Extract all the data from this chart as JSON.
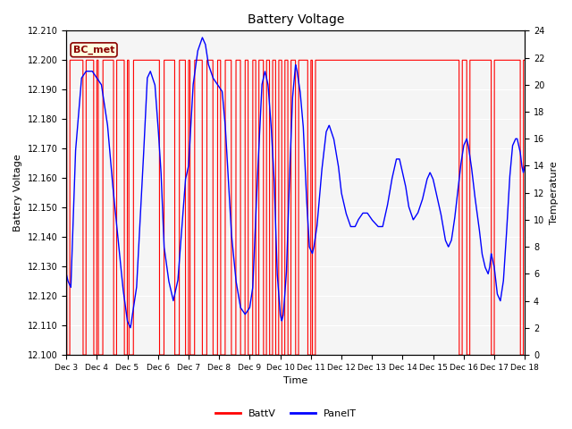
{
  "title": "Battery Voltage",
  "xlabel": "Time",
  "ylabel_left": "Battery Voltage",
  "ylabel_right": "Temperature",
  "ylim_left": [
    12.1,
    12.21
  ],
  "ylim_right": [
    0,
    24
  ],
  "yticks_left": [
    12.1,
    12.11,
    12.12,
    12.13,
    12.14,
    12.15,
    12.16,
    12.17,
    12.18,
    12.19,
    12.2,
    12.21
  ],
  "yticks_right": [
    0,
    2,
    4,
    6,
    8,
    10,
    12,
    14,
    16,
    18,
    20,
    22,
    24
  ],
  "bg_color": "#ffffff",
  "plot_bg_color": "#f5f5f5",
  "grid_color": "#dddddd",
  "legend_label": "BC_met",
  "batt_color": "red",
  "panel_color": "blue",
  "xtick_labels": [
    "Dec 3",
    "Dec 4",
    "Dec 5",
    "Dec 6",
    "Dec 7",
    "Dec 8",
    "Dec 9",
    "Dec 10",
    "Dec 11",
    "Dec 12",
    "Dec 13",
    "Dec 14",
    "Dec 15",
    "Dec 16",
    "Dec 17",
    "Dec 18"
  ],
  "batt_discharge_intervals": [
    [
      0.02,
      0.12
    ],
    [
      0.55,
      0.65
    ],
    [
      0.9,
      1.0
    ],
    [
      1.05,
      1.2
    ],
    [
      1.55,
      1.65
    ],
    [
      1.9,
      2.0
    ],
    [
      2.05,
      2.2
    ],
    [
      3.05,
      3.2
    ],
    [
      3.55,
      3.7
    ],
    [
      3.9,
      4.0
    ],
    [
      4.05,
      4.2
    ],
    [
      4.45,
      4.6
    ],
    [
      4.8,
      4.95
    ],
    [
      5.05,
      5.2
    ],
    [
      5.4,
      5.55
    ],
    [
      5.7,
      5.85
    ],
    [
      5.95,
      6.1
    ],
    [
      6.2,
      6.3
    ],
    [
      6.45,
      6.55
    ],
    [
      6.65,
      6.75
    ],
    [
      6.85,
      6.95
    ],
    [
      7.05,
      7.15
    ],
    [
      7.25,
      7.35
    ],
    [
      7.5,
      7.6
    ],
    [
      7.9,
      8.0
    ],
    [
      8.05,
      8.15
    ],
    [
      12.85,
      12.95
    ],
    [
      13.1,
      13.2
    ],
    [
      13.9,
      14.0
    ],
    [
      14.85,
      14.95
    ]
  ],
  "panel_keypoints": [
    [
      0.0,
      6.0
    ],
    [
      0.05,
      5.5
    ],
    [
      0.15,
      5.0
    ],
    [
      0.3,
      15.0
    ],
    [
      0.5,
      20.5
    ],
    [
      0.65,
      21.0
    ],
    [
      0.85,
      21.0
    ],
    [
      1.0,
      20.5
    ],
    [
      1.15,
      20.0
    ],
    [
      1.35,
      17.0
    ],
    [
      1.5,
      13.0
    ],
    [
      1.7,
      8.5
    ],
    [
      1.85,
      5.0
    ],
    [
      2.0,
      2.5
    ],
    [
      2.1,
      2.0
    ],
    [
      2.3,
      5.0
    ],
    [
      2.5,
      13.5
    ],
    [
      2.65,
      20.5
    ],
    [
      2.75,
      21.0
    ],
    [
      2.9,
      20.0
    ],
    [
      3.0,
      17.0
    ],
    [
      3.1,
      13.5
    ],
    [
      3.2,
      8.0
    ],
    [
      3.35,
      5.5
    ],
    [
      3.5,
      4.0
    ],
    [
      3.65,
      5.5
    ],
    [
      3.8,
      10.0
    ],
    [
      3.9,
      13.0
    ],
    [
      4.0,
      14.0
    ],
    [
      4.15,
      20.0
    ],
    [
      4.3,
      22.5
    ],
    [
      4.45,
      23.5
    ],
    [
      4.55,
      23.0
    ],
    [
      4.65,
      21.5
    ],
    [
      4.8,
      20.5
    ],
    [
      4.95,
      20.0
    ],
    [
      5.1,
      19.5
    ],
    [
      5.2,
      17.0
    ],
    [
      5.3,
      13.0
    ],
    [
      5.4,
      9.0
    ],
    [
      5.55,
      5.5
    ],
    [
      5.7,
      3.5
    ],
    [
      5.85,
      3.0
    ],
    [
      6.0,
      3.5
    ],
    [
      6.1,
      5.0
    ],
    [
      6.25,
      13.0
    ],
    [
      6.4,
      20.0
    ],
    [
      6.5,
      21.0
    ],
    [
      6.6,
      20.0
    ],
    [
      6.7,
      17.0
    ],
    [
      6.8,
      13.0
    ],
    [
      6.9,
      6.0
    ],
    [
      7.0,
      3.0
    ],
    [
      7.05,
      2.5
    ],
    [
      7.1,
      3.0
    ],
    [
      7.2,
      6.0
    ],
    [
      7.3,
      13.0
    ],
    [
      7.4,
      19.0
    ],
    [
      7.5,
      21.5
    ],
    [
      7.55,
      21.0
    ],
    [
      7.65,
      19.5
    ],
    [
      7.75,
      17.0
    ],
    [
      7.85,
      12.0
    ],
    [
      7.95,
      8.0
    ],
    [
      8.05,
      7.5
    ],
    [
      8.1,
      8.0
    ],
    [
      8.2,
      9.5
    ],
    [
      8.35,
      13.5
    ],
    [
      8.5,
      16.5
    ],
    [
      8.6,
      17.0
    ],
    [
      8.75,
      16.0
    ],
    [
      8.9,
      14.0
    ],
    [
      9.0,
      12.0
    ],
    [
      9.15,
      10.5
    ],
    [
      9.3,
      9.5
    ],
    [
      9.45,
      9.5
    ],
    [
      9.55,
      10.0
    ],
    [
      9.7,
      10.5
    ],
    [
      9.85,
      10.5
    ],
    [
      10.0,
      10.0
    ],
    [
      10.2,
      9.5
    ],
    [
      10.35,
      9.5
    ],
    [
      10.5,
      11.0
    ],
    [
      10.65,
      13.0
    ],
    [
      10.8,
      14.5
    ],
    [
      10.9,
      14.5
    ],
    [
      11.0,
      13.5
    ],
    [
      11.1,
      12.5
    ],
    [
      11.2,
      11.0
    ],
    [
      11.35,
      10.0
    ],
    [
      11.5,
      10.5
    ],
    [
      11.65,
      11.5
    ],
    [
      11.8,
      13.0
    ],
    [
      11.9,
      13.5
    ],
    [
      12.0,
      13.0
    ],
    [
      12.1,
      12.0
    ],
    [
      12.25,
      10.5
    ],
    [
      12.4,
      8.5
    ],
    [
      12.5,
      8.0
    ],
    [
      12.6,
      8.5
    ],
    [
      12.7,
      10.0
    ],
    [
      12.8,
      12.0
    ],
    [
      12.9,
      14.0
    ],
    [
      13.0,
      15.5
    ],
    [
      13.1,
      16.0
    ],
    [
      13.15,
      15.5
    ],
    [
      13.25,
      14.0
    ],
    [
      13.35,
      12.0
    ],
    [
      13.5,
      9.5
    ],
    [
      13.6,
      7.5
    ],
    [
      13.7,
      6.5
    ],
    [
      13.8,
      6.0
    ],
    [
      13.85,
      6.5
    ],
    [
      13.9,
      7.5
    ],
    [
      14.0,
      6.5
    ],
    [
      14.05,
      5.5
    ],
    [
      14.1,
      4.5
    ],
    [
      14.2,
      4.0
    ],
    [
      14.3,
      5.5
    ],
    [
      14.4,
      9.0
    ],
    [
      14.5,
      13.0
    ],
    [
      14.6,
      15.5
    ],
    [
      14.7,
      16.0
    ],
    [
      14.75,
      16.0
    ],
    [
      14.85,
      15.0
    ],
    [
      14.9,
      14.0
    ],
    [
      14.95,
      13.5
    ],
    [
      15.0,
      14.0
    ]
  ]
}
